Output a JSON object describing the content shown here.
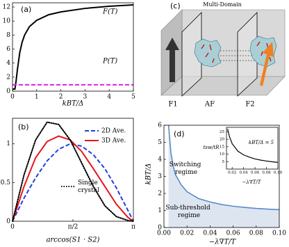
{
  "chart_data": [
    {
      "type": "line",
      "panel_label": "(a)",
      "xlabel": "kBT/Δ",
      "xlim": [
        0,
        5
      ],
      "ylim": [
        0,
        12.6
      ],
      "xticks": [
        0,
        1,
        2,
        3,
        4,
        5
      ],
      "yticks": [
        0,
        2,
        4,
        6,
        8,
        10,
        12
      ],
      "series": [
        {
          "name": "F(T)",
          "color": "#000000",
          "style": "solid",
          "x": [
            0,
            0.1,
            0.15,
            0.2,
            0.3,
            0.4,
            0.5,
            0.7,
            1,
            1.5,
            2,
            3,
            4,
            5
          ],
          "values": [
            0.3,
            0.3,
            1.5,
            3,
            5.5,
            7,
            8,
            9.2,
            10.1,
            10.9,
            11.3,
            11.8,
            12.1,
            12.3
          ]
        },
        {
          "name": "P(T)",
          "color": "#e020e0",
          "style": "dashed",
          "x": [
            0,
            5
          ],
          "values": [
            0.9,
            0.9
          ]
        }
      ]
    },
    {
      "type": "line",
      "panel_label": "(b)",
      "xlabel": "arccos(S1 · S2)",
      "legend": "upper right",
      "xlim": [
        0,
        3.14159
      ],
      "ylim": [
        0,
        1.33
      ],
      "xticks": [
        0,
        {
          "value": 1.5708,
          "label": "π/2"
        },
        {
          "value": 3.14159,
          "label": "π"
        }
      ],
      "yticks": [
        0,
        0.5,
        1
      ],
      "series": [
        {
          "name": "2D Ave.",
          "color": "#1f3fdc",
          "style": "dashed",
          "x": [
            0,
            0.3,
            0.6,
            0.9,
            1.2,
            1.5,
            1.8,
            2.1,
            2.4,
            2.7,
            3.0,
            3.14159
          ],
          "values": [
            0,
            0.3,
            0.56,
            0.78,
            0.93,
            1.0,
            0.97,
            0.86,
            0.68,
            0.43,
            0.14,
            0
          ]
        },
        {
          "name": "3D Ave.",
          "color": "#e8141c",
          "style": "solid",
          "x": [
            0,
            0.3,
            0.6,
            0.9,
            1.2,
            1.5,
            1.8,
            2.1,
            2.4,
            2.7,
            3.0,
            3.14159
          ],
          "values": [
            0,
            0.45,
            0.82,
            1.03,
            1.1,
            1.05,
            0.9,
            0.68,
            0.45,
            0.22,
            0.05,
            0
          ]
        },
        {
          "name": "Single crystal",
          "color": "#000000",
          "style": "dotted",
          "x": [
            0,
            0.3,
            0.6,
            0.9,
            1.2,
            1.5,
            1.8,
            2.1,
            2.4,
            2.7,
            3.0,
            3.14159
          ],
          "values": [
            0,
            0.6,
            1.05,
            1.28,
            1.25,
            1.05,
            0.75,
            0.45,
            0.2,
            0.06,
            0.01,
            0
          ]
        }
      ]
    },
    {
      "type": "line",
      "panel_label": "(d)",
      "xlabel": "−λ∇T/T",
      "ylabel": "kBT/Δ",
      "xlim": [
        0,
        0.1
      ],
      "ylim": [
        0,
        6
      ],
      "xticks": [
        {
          "value": 0,
          "label": "0.00"
        },
        0.02,
        0.04,
        0.06,
        0.08,
        {
          "value": 0.1,
          "label": "0.10"
        }
      ],
      "yticks": [
        0,
        1,
        2,
        3,
        4,
        5,
        6
      ],
      "annotations": [
        "Switching regime",
        "Sub-threshold regime"
      ],
      "series": [
        {
          "color": "#5b8ac6",
          "fill": "#dde5f1",
          "style": "solid",
          "x": [
            0.004,
            0.006,
            0.008,
            0.01,
            0.015,
            0.02,
            0.03,
            0.04,
            0.05,
            0.06,
            0.07,
            0.08,
            0.09,
            0.1
          ],
          "values": [
            6,
            4.4,
            3.6,
            3.1,
            2.5,
            2.1,
            1.7,
            1.5,
            1.35,
            1.25,
            1.18,
            1.12,
            1.08,
            1.05
          ]
        }
      ]
    },
    {
      "type": "line",
      "xlabel": "−λ∇T/T",
      "ylabel": "tsw/tR",
      "annotations": [
        "kBT/Δ = 5"
      ],
      "xlim": [
        0.01,
        0.1
      ],
      "ylim": [
        0,
        28
      ],
      "xticks": [
        0.02,
        0.04,
        0.06,
        0.08,
        {
          "value": 0.1,
          "label": "0.10"
        }
      ],
      "yticks": [
        5,
        10,
        15,
        20,
        25
      ],
      "series": [
        {
          "color": "#000000",
          "style": "solid",
          "x": [
            0.012,
            0.015,
            0.02,
            0.03,
            0.04,
            0.05,
            0.06,
            0.07,
            0.08,
            0.09,
            0.1
          ],
          "values": [
            27,
            22,
            17,
            12,
            9.5,
            8,
            6.8,
            6,
            5.4,
            4.9,
            4.5
          ]
        }
      ]
    }
  ],
  "diagram": {
    "panel_label": "(c)",
    "title": "Multi-Domain",
    "labels": [
      "F1",
      "AF",
      "F2"
    ]
  }
}
